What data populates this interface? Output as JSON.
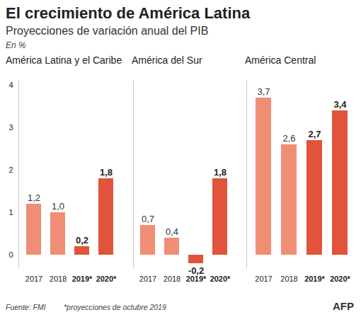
{
  "title": "El crecimiento de América Latina",
  "subtitle": "Proyecciones de variación anual del PIB",
  "unit": "En %",
  "source": "Fuente: FMI",
  "note": "*proyecciones de octubre 2019",
  "credit": "AFP",
  "chart_data": [
    {
      "type": "bar",
      "title": "América Latina y el Caribe",
      "categories": [
        "2017",
        "2018",
        "2019*",
        "2020*"
      ],
      "values": [
        1.2,
        1.0,
        0.2,
        1.8
      ],
      "value_labels": [
        "1,2",
        "1,0",
        "0,2",
        "1,8"
      ],
      "colors": [
        "#f08e75",
        "#f08e75",
        "#e2533b",
        "#e2533b"
      ],
      "ylim": [
        -0.3,
        4.1
      ],
      "yticks": [
        0,
        1,
        2,
        3,
        4
      ],
      "grid": false,
      "data_labels": true
    },
    {
      "type": "bar",
      "title": "América del Sur",
      "categories": [
        "2017",
        "2018",
        "2019*",
        "2020*"
      ],
      "values": [
        0.7,
        0.4,
        -0.2,
        1.8
      ],
      "value_labels": [
        "0,7",
        "0,4",
        "-0,2",
        "1,8"
      ],
      "colors": [
        "#f08e75",
        "#f08e75",
        "#e2533b",
        "#e2533b"
      ],
      "ylim": [
        -0.3,
        4.1
      ],
      "yticks": [
        0,
        1,
        2,
        3,
        4
      ],
      "grid": false,
      "data_labels": true,
      "tick_labels": "x"
    },
    {
      "type": "bar",
      "title": "América Central",
      "categories": [
        "2017",
        "2018",
        "2019*",
        "2020*"
      ],
      "values": [
        3.7,
        2.6,
        2.7,
        3.4
      ],
      "value_labels": [
        "3,7",
        "2,6",
        "2,7",
        "3,4"
      ],
      "colors": [
        "#f08e75",
        "#f08e75",
        "#e2533b",
        "#e2533b"
      ],
      "ylim": [
        -0.3,
        4.1
      ],
      "yticks": [
        0,
        1,
        2,
        3,
        4
      ],
      "grid": false,
      "data_labels": true,
      "tick_labels": "x"
    }
  ]
}
